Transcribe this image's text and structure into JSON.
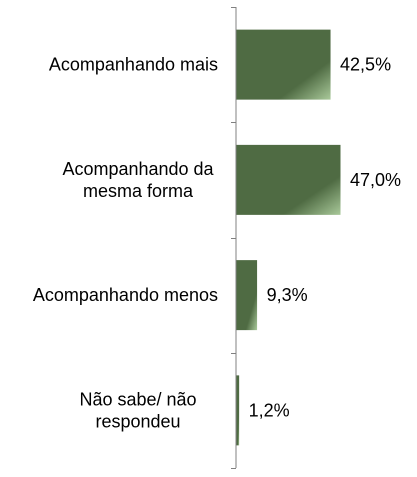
{
  "chart_data": {
    "type": "bar",
    "orientation": "horizontal",
    "categories": [
      [
        "Acompanhando mais"
      ],
      [
        "Acompanhando da",
        "mesma forma"
      ],
      [
        "Acompanhando menos"
      ],
      [
        "Não sabe/ não",
        "respondeu"
      ]
    ],
    "values": [
      42.5,
      47.0,
      9.3,
      1.2
    ],
    "value_labels": [
      "42,5%",
      "47,0%",
      "9,3%",
      "1,2%"
    ],
    "xlim": [
      0,
      47.0
    ],
    "grid": false,
    "legend": "none",
    "bar_color_dark": "#4f6b43",
    "bar_color_light": "#a9c99a"
  }
}
